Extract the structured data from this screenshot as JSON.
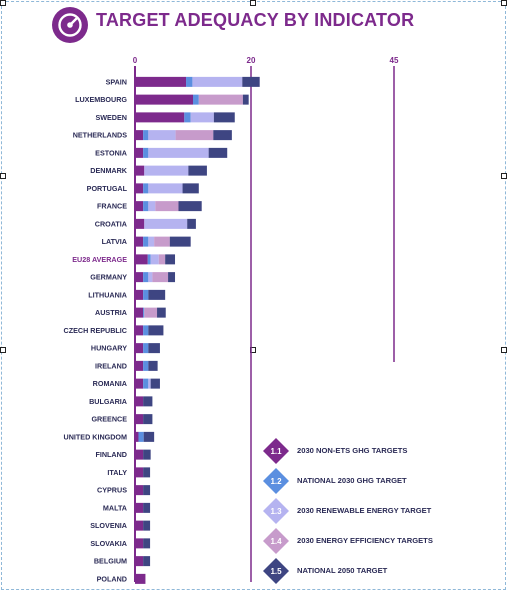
{
  "title": "TARGET ADEQUACY BY INDICATOR",
  "chart_data": {
    "type": "bar",
    "stacked": true,
    "orientation": "horizontal",
    "title": "TARGET ADEQUACY BY INDICATOR",
    "xlim": [
      0,
      45
    ],
    "x_ticks": [
      "0",
      "20",
      "45"
    ],
    "categories": [
      "SPAIN",
      "LUXEMBOURG",
      "SWEDEN",
      "NETHERLANDS",
      "ESTONIA",
      "DENMARK",
      "PORTUGAL",
      "FRANCE",
      "CROATIA",
      "LATVIA",
      "EU28 AVERAGE",
      "GERMANY",
      "LITHUANIA",
      "AUSTRIA",
      "CZECH REPUBLIC",
      "HUNGARY",
      "IRELAND",
      "ROMANIA",
      "BULGARIA",
      "GREENCE",
      "UNITED KINGDOM",
      "FINLAND",
      "ITALY",
      "CYPRUS",
      "MALTA",
      "SLOVENIA",
      "SLOVAKIA",
      "BELGIUM",
      "POLAND"
    ],
    "highlight_category": "EU28 AVERAGE",
    "series": [
      {
        "code": "1.1",
        "name": "2030 NON-ETS GHG TARGETS",
        "color": "#7d2a8c",
        "values": [
          8.8,
          10,
          8.5,
          1.4,
          1.4,
          1.6,
          1.4,
          1.4,
          1.6,
          1.4,
          2.2,
          1.4,
          1.4,
          1.4,
          1.4,
          1.4,
          1.4,
          1.4,
          1.4,
          1.4,
          0.6,
          1.4,
          1.4,
          1.4,
          1.4,
          1.4,
          1.4,
          1.4,
          1.8
        ]
      },
      {
        "code": "1.2",
        "name": "NATIONAL 2030 GHG TARGET",
        "color": "#5b8fe0",
        "values": [
          1.1,
          1,
          1.1,
          0.9,
          0.9,
          0,
          0.9,
          0.9,
          0,
          0.9,
          0.5,
          0.9,
          0.9,
          0.2,
          0.9,
          0.9,
          0.9,
          0.9,
          0,
          0,
          0.9,
          0,
          0,
          0,
          0,
          0,
          0,
          0,
          0
        ]
      },
      {
        "code": "1.3",
        "name": "2030 RENEWABLE ENERGY TARGET",
        "color": "#b5b3f0",
        "values": [
          8.6,
          0,
          4,
          4.7,
          10.4,
          7.6,
          5.9,
          1.2,
          7.4,
          1,
          1.4,
          0.7,
          0,
          0,
          0,
          0,
          0,
          0.4,
          0,
          0,
          0,
          0,
          0,
          0,
          0,
          0,
          0,
          0,
          0
        ]
      },
      {
        "code": "1.4",
        "name": "2030 ENERGY EFFICIENCY TARGETS",
        "color": "#c79bcb",
        "values": [
          0,
          7.6,
          0,
          6.5,
          0,
          0,
          0,
          4,
          0,
          2.7,
          1.1,
          2.7,
          0,
          2.2,
          0,
          0,
          0,
          0,
          0,
          0,
          0,
          0,
          0,
          0,
          0,
          0,
          0,
          0,
          0
        ]
      },
      {
        "code": "1.5",
        "name": "NATIONAL 2050 TARGET",
        "color": "#3e4582",
        "values": [
          3,
          1,
          3.6,
          3.2,
          3.2,
          3.2,
          2.8,
          4,
          1.5,
          3.6,
          1.7,
          1.2,
          2.9,
          1.5,
          2.6,
          2,
          1.6,
          1.6,
          1.6,
          1.6,
          1.8,
          1.3,
          1.2,
          1.2,
          1.2,
          1.2,
          1.2,
          1.2,
          0
        ]
      }
    ]
  }
}
